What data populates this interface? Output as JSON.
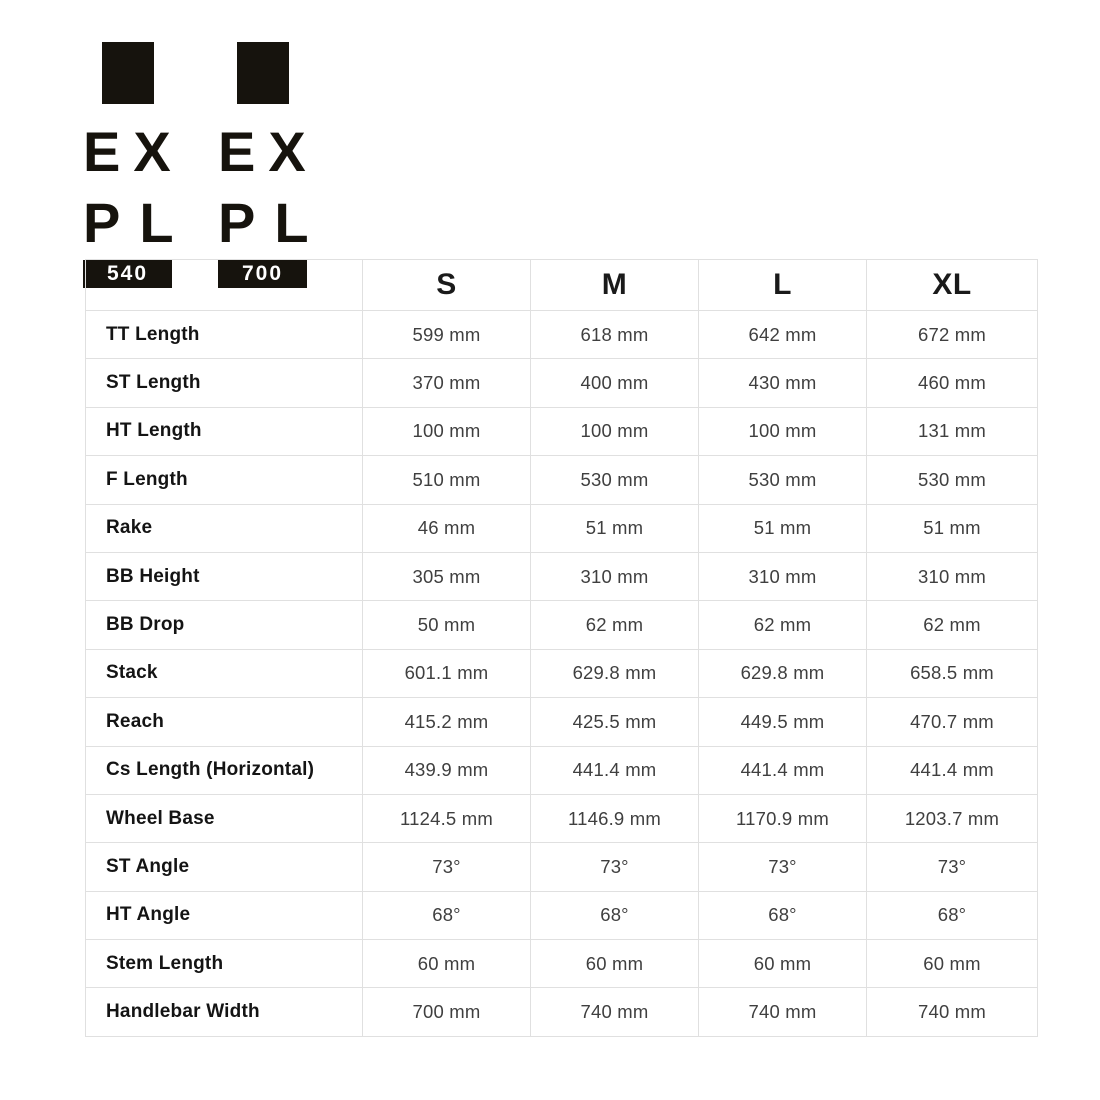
{
  "colors": {
    "background": "#ffffff",
    "ink": "#16130d",
    "header_text": "#1a1a1a",
    "label_text": "#141414",
    "value_text": "#3f3f3f",
    "border": "#e0e0e0",
    "badge_text": "#ffffff"
  },
  "logos": [
    {
      "id": "expl-540",
      "line1": "EX",
      "line2": "PL",
      "badge": "540"
    },
    {
      "id": "expl-700",
      "line1": "EX",
      "line2": "PL",
      "badge": "700"
    }
  ],
  "table": {
    "size_headers": [
      "S",
      "M",
      "L",
      "XL"
    ],
    "rows": [
      {
        "label": "TT Length",
        "values": [
          "599 mm",
          "618 mm",
          "642 mm",
          "672 mm"
        ]
      },
      {
        "label": "ST Length",
        "values": [
          "370 mm",
          "400 mm",
          "430 mm",
          "460 mm"
        ]
      },
      {
        "label": "HT Length",
        "values": [
          "100 mm",
          "100 mm",
          "100 mm",
          "131 mm"
        ]
      },
      {
        "label": "F Length",
        "values": [
          "510 mm",
          "530 mm",
          "530 mm",
          "530 mm"
        ]
      },
      {
        "label": "Rake",
        "values": [
          "46 mm",
          "51 mm",
          "51 mm",
          "51 mm"
        ]
      },
      {
        "label": "BB Height",
        "values": [
          "305 mm",
          "310 mm",
          "310 mm",
          "310 mm"
        ]
      },
      {
        "label": "BB Drop",
        "values": [
          "50 mm",
          "62 mm",
          "62 mm",
          "62 mm"
        ]
      },
      {
        "label": "Stack",
        "values": [
          "601.1 mm",
          "629.8 mm",
          "629.8 mm",
          "658.5 mm"
        ]
      },
      {
        "label": "Reach",
        "values": [
          "415.2 mm",
          "425.5 mm",
          "449.5 mm",
          "470.7 mm"
        ]
      },
      {
        "label": "Cs Length (Horizontal)",
        "values": [
          "439.9 mm",
          "441.4 mm",
          "441.4 mm",
          "441.4 mm"
        ]
      },
      {
        "label": "Wheel Base",
        "values": [
          "1124.5 mm",
          "1146.9 mm",
          "1170.9 mm",
          "1203.7 mm"
        ]
      },
      {
        "label": "ST Angle",
        "values": [
          "73°",
          "73°",
          "73°",
          "73°"
        ]
      },
      {
        "label": "HT Angle",
        "values": [
          "68°",
          "68°",
          "68°",
          "68°"
        ]
      },
      {
        "label": "Stem Length",
        "values": [
          "60 mm",
          "60 mm",
          "60 mm",
          "60 mm"
        ]
      },
      {
        "label": "Handlebar Width",
        "values": [
          "700 mm",
          "740 mm",
          "740 mm",
          "740 mm"
        ]
      }
    ]
  }
}
